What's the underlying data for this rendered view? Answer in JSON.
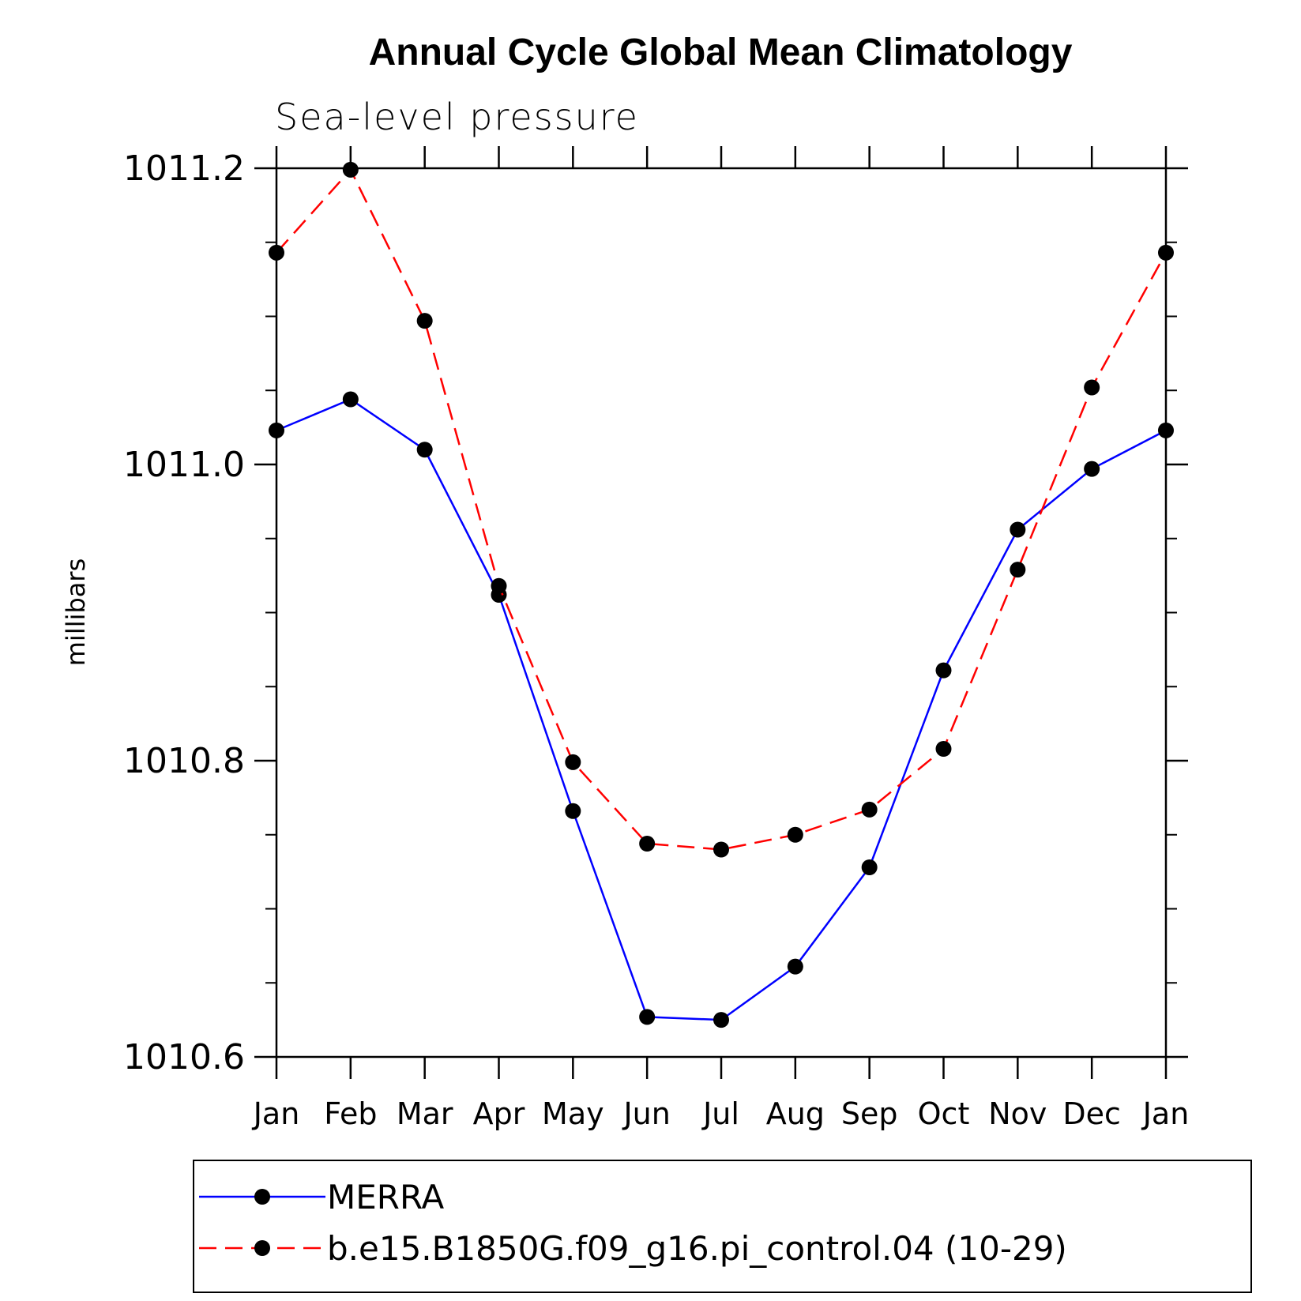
{
  "chart_data": {
    "type": "line",
    "title": "Annual Cycle Global Mean Climatology",
    "subtitle": "Sea-level pressure",
    "ylabel": "millibars",
    "xlabel": "",
    "categories": [
      "Jan",
      "Feb",
      "Mar",
      "Apr",
      "May",
      "Jun",
      "Jul",
      "Aug",
      "Sep",
      "Oct",
      "Nov",
      "Dec",
      "Jan"
    ],
    "ylim": [
      1010.6,
      1011.2
    ],
    "yticks": [
      1010.6,
      1010.8,
      1011.0,
      1011.2
    ],
    "ytick_labels": [
      "1010.6",
      "1010.8",
      "1011.0",
      "1011.2"
    ],
    "yminor_step": 0.05,
    "legend_position": "bottom",
    "grid": false,
    "series": [
      {
        "name": "MERRA",
        "color": "#0000ff",
        "line_style": "solid",
        "marker": "filled-circle",
        "values": [
          1011.023,
          1011.044,
          1011.01,
          1010.912,
          1010.766,
          1010.627,
          1010.625,
          1010.661,
          1010.728,
          1010.861,
          1010.956,
          1010.997,
          1011.023
        ]
      },
      {
        "name": "b.e15.B1850G.f09_g16.pi_control.04 (10-29)",
        "color": "#ff0000",
        "line_style": "dashed",
        "marker": "filled-circle",
        "values": [
          1011.143,
          1011.199,
          1011.097,
          1010.918,
          1010.799,
          1010.744,
          1010.74,
          1010.75,
          1010.767,
          1010.808,
          1010.929,
          1011.052,
          1011.143
        ]
      }
    ]
  }
}
